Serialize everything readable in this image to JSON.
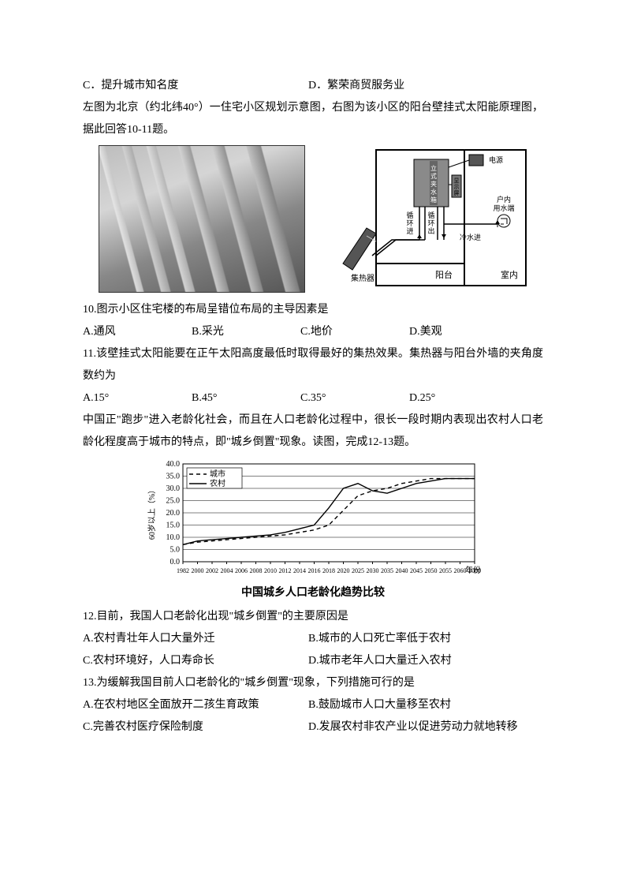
{
  "top_options": {
    "c": "C．提升城市知名度",
    "d": "D．繁荣商贸服务业"
  },
  "intro_10_11": "左图为北京（约北纬40°）一住宅小区规划示意图，右图为该小区的阳台壁挂式太阳能原理图，据此回答10-11题。",
  "diagram": {
    "labels": {
      "tank": "立式夹水箱",
      "power": "电源",
      "screen": "显示屏",
      "indoor_water": "户内用水端",
      "circ_in": "循环进",
      "circ_out": "循环出",
      "cold_in": "冷水进",
      "collector": "集热器",
      "balcony": "阳台",
      "room": "室内"
    },
    "colors": {
      "stroke": "#000000",
      "fill_tank": "#8a8a8a",
      "fill_wall": "#ffffff"
    }
  },
  "q10": {
    "stem": "10.图示小区住宅楼的布局呈错位布局的主导因素是",
    "a": "A.通风",
    "b": "B.采光",
    "c": "C.地价",
    "d": "D.美观"
  },
  "q11": {
    "stem": "11.该壁挂式太阳能要在正午太阳高度最低时取得最好的集热效果。集热器与阳台外墙的夹角度数约为",
    "a": "A.15°",
    "b": "B.45°",
    "c": "C.35°",
    "d": "D.25°"
  },
  "intro_12_13": "中国正\"跑步\"进入老龄化社会，而且在人口老龄化过程中，很长一段时期内表现出农村人口老龄化程度高于城市的特点，即\"城乡倒置\"现象。读图，完成12-13题。",
  "chart": {
    "type": "line",
    "title": "中国城乡人口老龄化趋势比较",
    "ylabel": "60岁以上（%）",
    "xlabel": "年份",
    "ylim": [
      0,
      40
    ],
    "ytick_step": 5,
    "x_categories": [
      "1982",
      "2000",
      "2002",
      "2004",
      "2006",
      "2008",
      "2010",
      "2012",
      "2014",
      "2016",
      "2018",
      "2020",
      "2025",
      "2030",
      "2035",
      "2040",
      "2045",
      "2050",
      "2055",
      "2060",
      "2080"
    ],
    "series": [
      {
        "name": "城市",
        "style": "dashed",
        "color": "#000000",
        "values": [
          7,
          8,
          8.5,
          9,
          9.5,
          10,
          10.5,
          11,
          12,
          13,
          15,
          21,
          27,
          29,
          30,
          32,
          33,
          34,
          34,
          34,
          34
        ]
      },
      {
        "name": "农村",
        "style": "solid",
        "color": "#000000",
        "values": [
          7,
          8.5,
          9,
          9.5,
          10,
          10.5,
          11,
          12,
          13.5,
          15,
          22,
          30,
          32,
          29,
          28,
          30,
          32,
          33,
          34,
          34,
          34
        ]
      }
    ],
    "background_color": "#ffffff",
    "grid_color": "#000000",
    "label_fontsize": 10
  },
  "q12": {
    "stem": "12.目前，我国人口老龄化出现\"城乡倒置\"的主要原因是",
    "a": "A.农村青壮年人口大量外迁",
    "b": "B.城市的人口死亡率低于农村",
    "c": "C.农村环境好，人口寿命长",
    "d": "D.城市老年人口大量迁入农村"
  },
  "q13": {
    "stem": "13.为缓解我国目前人口老龄化的\"城乡倒置\"现象，下列措施可行的是",
    "a": "A.在农村地区全面放开二孩生育政策",
    "b": "B.鼓励城市人口大量移至农村",
    "c": "C.完善农村医疗保险制度",
    "d": "D.发展农村非农产业以促进劳动力就地转移"
  }
}
